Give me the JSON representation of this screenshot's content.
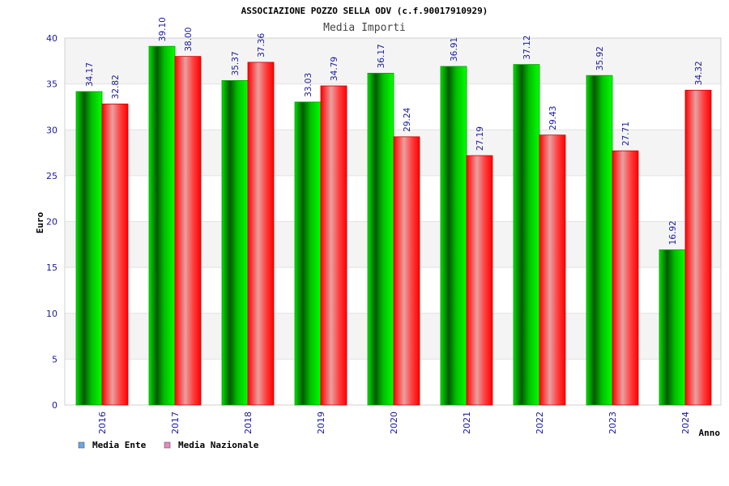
{
  "chart_data": {
    "type": "bar",
    "title": "ASSOCIAZIONE POZZO SELLA ODV (c.f.90017910929)",
    "subtitle": "Media Importi",
    "xlabel": "Anno",
    "ylabel": "Euro",
    "ylim": [
      0,
      40
    ],
    "yticks": [
      0,
      5,
      10,
      15,
      20,
      25,
      30,
      35,
      40
    ],
    "categories": [
      "2016",
      "2017",
      "2018",
      "2019",
      "2020",
      "2021",
      "2022",
      "2023",
      "2024"
    ],
    "series": [
      {
        "name": "Media Ente",
        "values": [
          34.17,
          39.1,
          35.37,
          33.03,
          36.17,
          36.91,
          37.12,
          35.92,
          16.92
        ]
      },
      {
        "name": "Media Nazionale",
        "values": [
          32.82,
          38.0,
          37.36,
          34.79,
          29.24,
          27.19,
          29.43,
          27.71,
          34.32
        ]
      }
    ],
    "value_labels": [
      [
        "34.17",
        "39.10",
        "35.37",
        "33.03",
        "36.17",
        "36.91",
        "37.12",
        "35.92",
        "16.92"
      ],
      [
        "32.82",
        "38.00",
        "37.36",
        "34.79",
        "29.24",
        "27.19",
        "29.43",
        "27.71",
        "34.32"
      ]
    ],
    "grid": true,
    "legend": "bottom-left",
    "colors": {
      "series0": "#00c800",
      "series1": "#ff2020",
      "legend0": "#6aa6e8",
      "legend1": "#e888c0",
      "band": "#f4f4f4",
      "tick_text": "#1a1a9c"
    }
  }
}
